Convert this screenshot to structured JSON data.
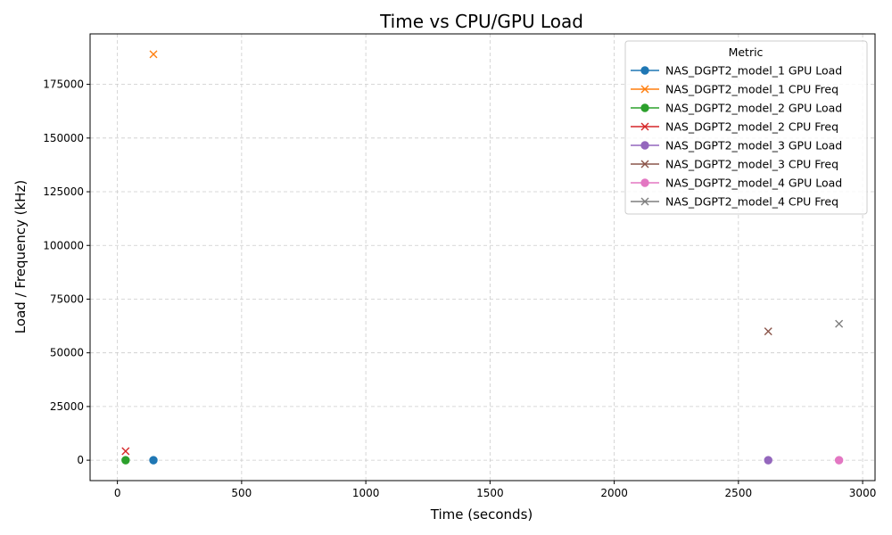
{
  "chart_data": {
    "type": "scatter",
    "title": "Time vs CPU/GPU Load",
    "xlabel": "Time (seconds)",
    "ylabel": "Load / Frequency (kHz)",
    "xlim": [
      -110,
      3050
    ],
    "ylim": [
      -9500,
      198500
    ],
    "x_ticks": [
      0,
      500,
      1000,
      1500,
      2000,
      2500,
      3000
    ],
    "x_tick_labels": [
      "0",
      "500",
      "1000",
      "1500",
      "2000",
      "2500",
      "3000"
    ],
    "y_ticks": [
      0,
      25000,
      50000,
      75000,
      100000,
      125000,
      150000,
      175000
    ],
    "y_tick_labels": [
      "0",
      "25000",
      "50000",
      "75000",
      "100000",
      "125000",
      "150000",
      "175000"
    ],
    "grid": true,
    "legend": {
      "title": "Metric",
      "placement": "top-right"
    },
    "series": [
      {
        "name": "NAS_DGPT2_model_1 GPU Load",
        "color": "#1f77b4",
        "marker": "circle",
        "points": [
          [
            145,
            0
          ]
        ]
      },
      {
        "name": "NAS_DGPT2_model_1 CPU Freq",
        "color": "#ff7f0e",
        "marker": "x",
        "points": [
          [
            145,
            189000
          ]
        ]
      },
      {
        "name": "NAS_DGPT2_model_2 GPU Load",
        "color": "#2ca02c",
        "marker": "circle",
        "points": [
          [
            33,
            0
          ]
        ]
      },
      {
        "name": "NAS_DGPT2_model_2 CPU Freq",
        "color": "#d62728",
        "marker": "x",
        "points": [
          [
            33,
            4200
          ]
        ]
      },
      {
        "name": "NAS_DGPT2_model_3 GPU Load",
        "color": "#9467bd",
        "marker": "circle",
        "points": [
          [
            2620,
            0
          ]
        ]
      },
      {
        "name": "NAS_DGPT2_model_3 CPU Freq",
        "color": "#8c564b",
        "marker": "x",
        "points": [
          [
            2620,
            60000
          ]
        ]
      },
      {
        "name": "NAS_DGPT2_model_4 GPU Load",
        "color": "#e377c2",
        "marker": "circle",
        "points": [
          [
            2905,
            0
          ]
        ]
      },
      {
        "name": "NAS_DGPT2_model_4 CPU Freq",
        "color": "#7f7f7f",
        "marker": "x",
        "points": [
          [
            2905,
            63500
          ]
        ]
      }
    ]
  }
}
